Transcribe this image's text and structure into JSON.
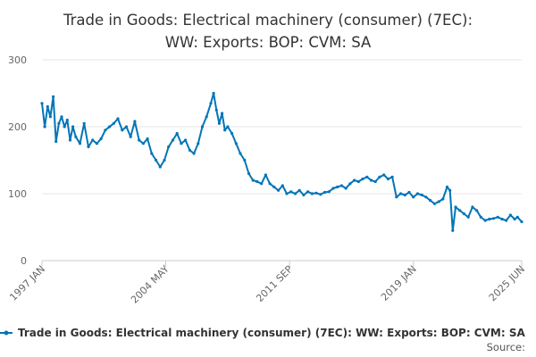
{
  "chart_data": {
    "type": "line",
    "title": "Trade in Goods: Electrical machinery (consumer) (7EC): WW: Exports: BOP: CVM: SA",
    "title_lines": [
      "Trade in Goods: Electrical machinery (consumer) (7EC):",
      "WW: Exports: BOP: CVM: SA"
    ],
    "xlabel": "",
    "ylabel": "",
    "ylim": [
      0,
      300
    ],
    "yticks": [
      "0",
      "100",
      "200",
      "300"
    ],
    "xlim": [
      "1997-01",
      "2025-06"
    ],
    "xticks": [
      {
        "label": "1997 JAN",
        "date": "1997-01"
      },
      {
        "label": "2004 MAY",
        "date": "2004-05"
      },
      {
        "label": "2011 SEP",
        "date": "2011-09"
      },
      {
        "label": "2019 JAN",
        "date": "2019-01"
      },
      {
        "label": "2025 JUN",
        "date": "2025-06"
      }
    ],
    "grid": true,
    "legend_position": "bottom",
    "source_label": "Source:",
    "series": [
      {
        "name": "Trade in Goods: Electrical machinery (consumer) (7EC): WW: Exports: BOP: CVM: SA",
        "color": "#0075b8",
        "points": [
          [
            "1997-01",
            235
          ],
          [
            "1997-03",
            200
          ],
          [
            "1997-05",
            230
          ],
          [
            "1997-07",
            215
          ],
          [
            "1997-09",
            245
          ],
          [
            "1997-11",
            178
          ],
          [
            "1998-01",
            205
          ],
          [
            "1998-03",
            215
          ],
          [
            "1998-05",
            200
          ],
          [
            "1998-07",
            210
          ],
          [
            "1998-09",
            180
          ],
          [
            "1998-11",
            200
          ],
          [
            "1999-01",
            185
          ],
          [
            "1999-04",
            175
          ],
          [
            "1999-07",
            205
          ],
          [
            "1999-10",
            170
          ],
          [
            "2000-01",
            180
          ],
          [
            "2000-04",
            175
          ],
          [
            "2000-07",
            182
          ],
          [
            "2000-10",
            195
          ],
          [
            "2001-01",
            200
          ],
          [
            "2001-04",
            205
          ],
          [
            "2001-07",
            212
          ],
          [
            "2001-10",
            195
          ],
          [
            "2002-01",
            200
          ],
          [
            "2002-04",
            185
          ],
          [
            "2002-07",
            208
          ],
          [
            "2002-10",
            180
          ],
          [
            "2003-01",
            175
          ],
          [
            "2003-04",
            182
          ],
          [
            "2003-07",
            160
          ],
          [
            "2003-10",
            150
          ],
          [
            "2004-01",
            140
          ],
          [
            "2004-04",
            150
          ],
          [
            "2004-07",
            170
          ],
          [
            "2004-10",
            180
          ],
          [
            "2005-01",
            190
          ],
          [
            "2005-04",
            175
          ],
          [
            "2005-07",
            180
          ],
          [
            "2005-10",
            165
          ],
          [
            "2006-01",
            160
          ],
          [
            "2006-04",
            175
          ],
          [
            "2006-07",
            200
          ],
          [
            "2006-10",
            215
          ],
          [
            "2007-01",
            235
          ],
          [
            "2007-03",
            250
          ],
          [
            "2007-05",
            225
          ],
          [
            "2007-07",
            205
          ],
          [
            "2007-09",
            220
          ],
          [
            "2007-11",
            195
          ],
          [
            "2008-01",
            200
          ],
          [
            "2008-04",
            190
          ],
          [
            "2008-07",
            175
          ],
          [
            "2008-10",
            160
          ],
          [
            "2009-01",
            150
          ],
          [
            "2009-04",
            130
          ],
          [
            "2009-07",
            120
          ],
          [
            "2009-10",
            118
          ],
          [
            "2010-01",
            115
          ],
          [
            "2010-04",
            128
          ],
          [
            "2010-07",
            115
          ],
          [
            "2010-10",
            110
          ],
          [
            "2011-01",
            105
          ],
          [
            "2011-04",
            112
          ],
          [
            "2011-07",
            100
          ],
          [
            "2011-10",
            103
          ],
          [
            "2012-01",
            100
          ],
          [
            "2012-04",
            105
          ],
          [
            "2012-07",
            98
          ],
          [
            "2012-10",
            103
          ],
          [
            "2013-01",
            100
          ],
          [
            "2013-04",
            101
          ],
          [
            "2013-07",
            99
          ],
          [
            "2013-10",
            102
          ],
          [
            "2014-01",
            103
          ],
          [
            "2014-04",
            108
          ],
          [
            "2014-07",
            110
          ],
          [
            "2014-10",
            112
          ],
          [
            "2015-01",
            108
          ],
          [
            "2015-04",
            115
          ],
          [
            "2015-07",
            120
          ],
          [
            "2015-10",
            118
          ],
          [
            "2016-01",
            122
          ],
          [
            "2016-04",
            125
          ],
          [
            "2016-07",
            120
          ],
          [
            "2016-10",
            118
          ],
          [
            "2017-01",
            125
          ],
          [
            "2017-04",
            128
          ],
          [
            "2017-07",
            122
          ],
          [
            "2017-10",
            125
          ],
          [
            "2018-01",
            95
          ],
          [
            "2018-04",
            100
          ],
          [
            "2018-07",
            98
          ],
          [
            "2018-10",
            102
          ],
          [
            "2019-01",
            95
          ],
          [
            "2019-04",
            100
          ],
          [
            "2019-07",
            98
          ],
          [
            "2019-10",
            95
          ],
          [
            "2020-01",
            90
          ],
          [
            "2020-04",
            85
          ],
          [
            "2020-07",
            88
          ],
          [
            "2020-10",
            92
          ],
          [
            "2021-01",
            110
          ],
          [
            "2021-03",
            105
          ],
          [
            "2021-05",
            45
          ],
          [
            "2021-07",
            80
          ],
          [
            "2021-10",
            75
          ],
          [
            "2022-01",
            70
          ],
          [
            "2022-04",
            65
          ],
          [
            "2022-07",
            80
          ],
          [
            "2022-10",
            75
          ],
          [
            "2023-01",
            65
          ],
          [
            "2023-04",
            60
          ],
          [
            "2023-07",
            62
          ],
          [
            "2023-10",
            63
          ],
          [
            "2024-01",
            65
          ],
          [
            "2024-04",
            62
          ],
          [
            "2024-07",
            60
          ],
          [
            "2024-10",
            68
          ],
          [
            "2025-01",
            62
          ],
          [
            "2025-03",
            65
          ],
          [
            "2025-06",
            58
          ]
        ]
      }
    ]
  }
}
